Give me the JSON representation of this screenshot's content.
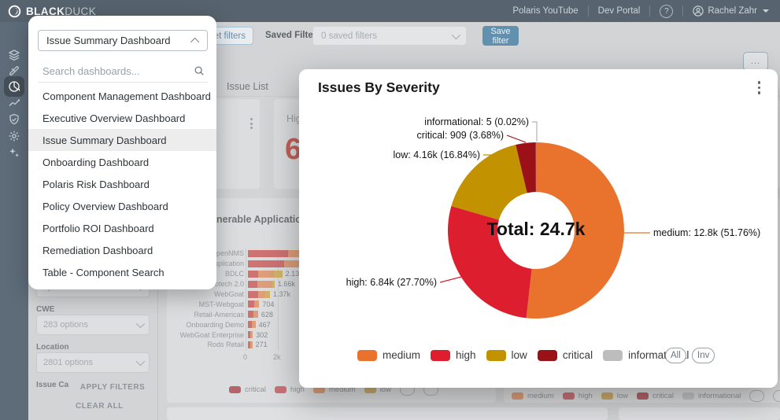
{
  "topbar": {
    "brand_bold": "BLACK",
    "brand_light": "DUCK",
    "links": [
      "Polaris YouTube",
      "Dev Portal"
    ],
    "help": "?",
    "user": "Rachel Zahr"
  },
  "toolbar": {
    "reset_button": "set filters",
    "saved_filters_label": "Saved Filters",
    "saved_filters_value": "0 saved filters",
    "save_button": "Save filter",
    "overflow_button": "..."
  },
  "dashboard_dropdown": {
    "selected": "Issue Summary Dashboard",
    "search_placeholder": "Search dashboards...",
    "selected_index": 2,
    "items": [
      "Component Management Dashboard",
      "Executive Overview Dashboard",
      "Issue Summary Dashboard",
      "Onboarding Dashboard",
      "Polaris Risk Dashboard",
      "Policy Overview Dashboard",
      "Portfolio ROI Dashboard",
      "Remediation Dashboard",
      "Table - Component Search"
    ]
  },
  "tabs": {
    "issue_list": "Issue List"
  },
  "metric_card": {
    "label": "High",
    "value": "6,",
    "left_fragment": "0"
  },
  "filters": {
    "top_value": "options",
    "cwe_label": "CWE",
    "cwe_value": "283 options",
    "location_label": "Location",
    "location_value": "2801 options",
    "issue_category_label": "Issue Ca",
    "apply_button": "APPLY FILTERS",
    "clear_all": "CLEAR ALL"
  },
  "modal": {
    "title": "Issues By Severity",
    "all_button": "All",
    "inv_button": "Inv"
  },
  "chart_data": [
    {
      "type": "pie",
      "subtype": "donut",
      "title": "Issues By Severity",
      "center_label": "Total: 24.7k",
      "total_display": "24.7k",
      "legend_position": "bottom",
      "slices": [
        {
          "name": "medium",
          "value": 12800,
          "display": "12.8k",
          "pct": 51.76,
          "callout": "medium: 12.8k (51.76%)",
          "color": "#E9732C"
        },
        {
          "name": "high",
          "value": 6840,
          "display": "6.84k",
          "pct": 27.7,
          "callout": "high: 6.84k (27.70%)",
          "color": "#DC1E2E"
        },
        {
          "name": "low",
          "value": 4160,
          "display": "4.16k",
          "pct": 16.84,
          "callout": "low: 4.16k (16.84%)",
          "color": "#C29200"
        },
        {
          "name": "critical",
          "value": 909,
          "display": "909",
          "pct": 3.68,
          "callout": "critical: 909 (3.68%)",
          "color": "#9A1218"
        },
        {
          "name": "informational",
          "value": 5,
          "display": "5",
          "pct": 0.02,
          "callout": "informational: 5 (0.02%)",
          "color": "#BDBDBD"
        }
      ],
      "legend": [
        {
          "label": "medium",
          "color": "#E9732C"
        },
        {
          "label": "high",
          "color": "#DC1E2E"
        },
        {
          "label": "low",
          "color": "#C29200"
        },
        {
          "label": "critical",
          "color": "#9A1218"
        },
        {
          "label": "informational",
          "color": "#BDBDBD"
        }
      ]
    },
    {
      "type": "bar",
      "orientation": "horizontal",
      "title": "Vulnerable Applications",
      "x_ticks": [
        "0",
        "2k"
      ],
      "x_tick_values": [
        0,
        2000
      ],
      "bars": [
        {
          "label": "OpenNMS",
          "value": 3300,
          "display": "",
          "occluded": true
        },
        {
          "label": "application",
          "value": 5600,
          "display": "",
          "occluded": true
        },
        {
          "label": "BDLC",
          "value": 2130,
          "display": "2.13k"
        },
        {
          "label": "potech 2.0",
          "value": 1660,
          "display": "1.66k"
        },
        {
          "label": "WebGoat",
          "value": 1370,
          "display": "1.37k"
        },
        {
          "label": "MST-Webgoat",
          "value": 704,
          "display": "704"
        },
        {
          "label": "Retail-Americas",
          "value": 628,
          "display": "628"
        },
        {
          "label": "Onboarding Demo",
          "value": 467,
          "display": "467"
        },
        {
          "label": "WebGoat Enterprise",
          "value": 302,
          "display": "302"
        },
        {
          "label": "Rods Retail",
          "value": 271,
          "display": "271"
        }
      ],
      "segment_colors": [
        "#ce7272",
        "#dd9e79",
        "#d2b36b"
      ],
      "segments": [
        [
          0.75,
          0.25,
          0
        ],
        [
          0.4,
          0.5,
          0.1
        ],
        [
          0.3,
          0.45,
          0.25
        ],
        [
          0.35,
          0.55,
          0.1
        ],
        [
          0.45,
          0.35,
          0.2
        ],
        [
          0.55,
          0.45,
          0
        ],
        [
          0.55,
          0.45,
          0
        ],
        [
          0.5,
          0.5,
          0
        ],
        [
          0.5,
          0.5,
          0
        ],
        [
          0.5,
          0.5,
          0
        ]
      ],
      "legend": [
        "critical",
        "high",
        "medium",
        "low"
      ]
    }
  ],
  "background_legends": {
    "left": [
      {
        "label": "critical",
        "color": "#b4646a"
      },
      {
        "label": "high",
        "color": "#cc7176"
      },
      {
        "label": "medium",
        "color": "#dd9e79"
      },
      {
        "label": "low",
        "color": "#ccab6a"
      }
    ],
    "right": [
      {
        "label": "medium",
        "color": "#dd9e79"
      },
      {
        "label": "high",
        "color": "#cc7176"
      },
      {
        "label": "low",
        "color": "#ccab6a"
      },
      {
        "label": "critical",
        "color": "#b4646a"
      },
      {
        "label": "informational",
        "color": "#c4c5c6"
      }
    ]
  }
}
